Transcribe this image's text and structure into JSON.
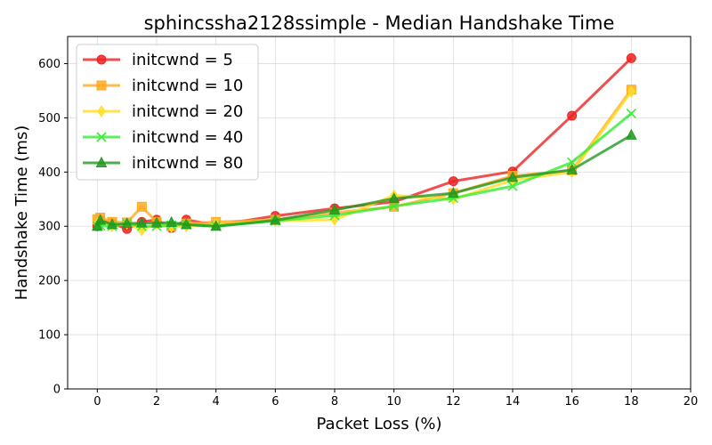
{
  "chart_data": {
    "type": "line",
    "title": "sphincssha2128ssimple - Median Handshake Time",
    "xlabel": "Packet Loss (%)",
    "ylabel": "Handshake Time (ms)",
    "xlim": [
      -1,
      20
    ],
    "ylim": [
      0,
      650
    ],
    "xticks": [
      0,
      2,
      4,
      6,
      8,
      10,
      12,
      14,
      16,
      18,
      20
    ],
    "yticks": [
      0,
      100,
      200,
      300,
      400,
      500,
      600
    ],
    "grid": true,
    "legend_position": "top-left",
    "x": [
      0,
      0.1,
      0.5,
      1,
      1.5,
      2,
      2.5,
      3,
      4,
      6,
      8,
      10,
      12,
      14,
      16,
      18
    ],
    "series": [
      {
        "name": "initcwnd = 5",
        "color": "#ee2222",
        "marker": "circle",
        "values": [
          300,
          312,
          305,
          295,
          308,
          312,
          297,
          312,
          302,
          319,
          333,
          345,
          383,
          401,
          504,
          610
        ]
      },
      {
        "name": "initcwnd = 10",
        "color": "#ffaa22",
        "marker": "square",
        "values": [
          313,
          316,
          308,
          307,
          336,
          308,
          300,
          305,
          308,
          312,
          325,
          336,
          361,
          393,
          403,
          552
        ]
      },
      {
        "name": "initcwnd = 20",
        "color": "#ffdd22",
        "marker": "diamond",
        "values": [
          305,
          310,
          300,
          305,
          293,
          305,
          299,
          300,
          304,
          310,
          312,
          357,
          350,
          385,
          400,
          548
        ]
      },
      {
        "name": "initcwnd = 40",
        "color": "#33ee33",
        "marker": "x",
        "values": [
          300,
          301,
          300,
          305,
          300,
          300,
          302,
          303,
          300,
          310,
          320,
          337,
          352,
          374,
          418,
          508
        ]
      },
      {
        "name": "initcwnd = 80",
        "color": "#229922",
        "marker": "triangle",
        "values": [
          300,
          311,
          303,
          305,
          306,
          306,
          307,
          303,
          300,
          311,
          330,
          351,
          361,
          390,
          404,
          468
        ]
      }
    ]
  }
}
